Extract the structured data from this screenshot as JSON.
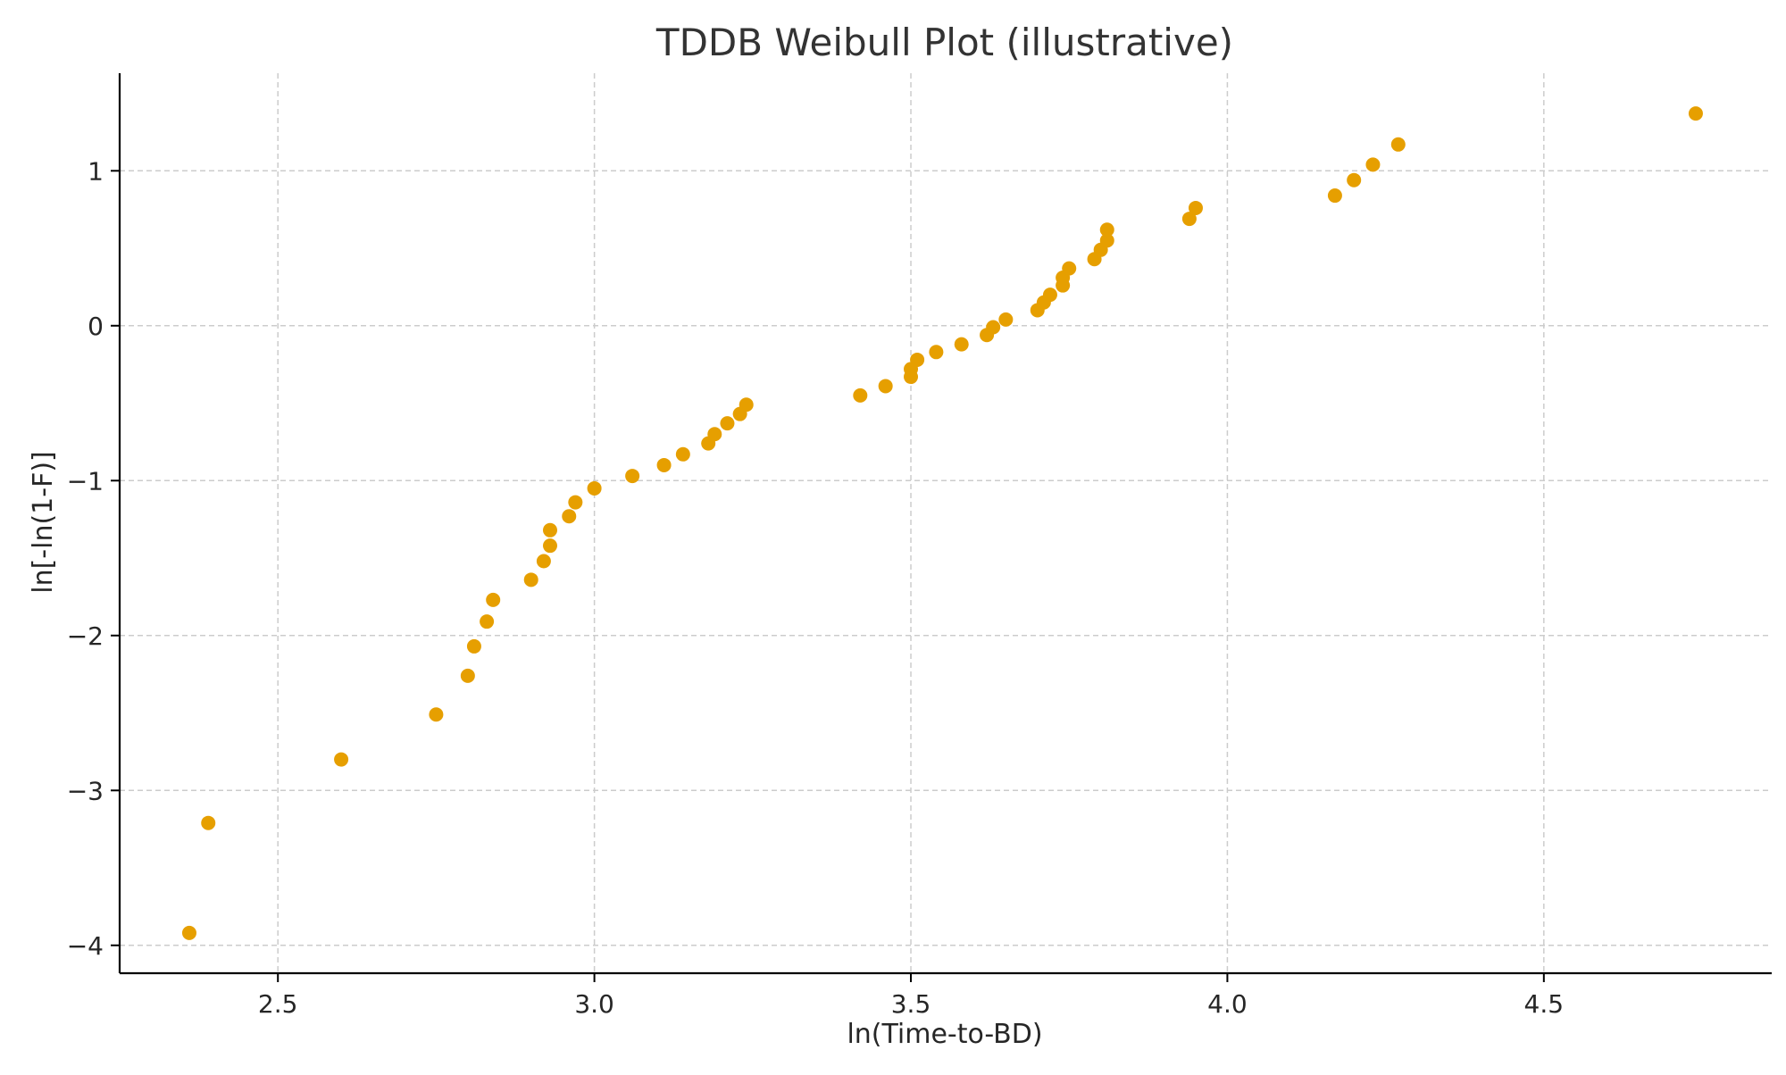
{
  "chart_data": {
    "type": "scatter",
    "title": "TDDB Weibull Plot (illustrative)",
    "xlabel": "ln(Time-to-BD)",
    "ylabel": "ln[-ln(1-F)]",
    "xlim": [
      2.25,
      4.86
    ],
    "ylim": [
      -4.18,
      1.63
    ],
    "xticks": [
      2.5,
      3.0,
      3.5,
      4.0,
      4.5
    ],
    "xtick_labels": [
      "2.5",
      "3.0",
      "3.5",
      "4.0",
      "4.5"
    ],
    "yticks": [
      1,
      0,
      -1,
      -2,
      -3,
      -4
    ],
    "ytick_labels": [
      "1",
      "0",
      "−1",
      "−2",
      "−3",
      "−4"
    ],
    "grid": true,
    "marker_color": "#E69F00",
    "series": [
      {
        "points": [
          {
            "x": 2.36,
            "y": -3.92
          },
          {
            "x": 2.39,
            "y": -3.21
          },
          {
            "x": 2.6,
            "y": -2.8
          },
          {
            "x": 2.75,
            "y": -2.51
          },
          {
            "x": 2.8,
            "y": -2.26
          },
          {
            "x": 2.81,
            "y": -2.07
          },
          {
            "x": 2.83,
            "y": -1.91
          },
          {
            "x": 2.84,
            "y": -1.77
          },
          {
            "x": 2.9,
            "y": -1.64
          },
          {
            "x": 2.92,
            "y": -1.52
          },
          {
            "x": 2.93,
            "y": -1.42
          },
          {
            "x": 2.93,
            "y": -1.32
          },
          {
            "x": 2.96,
            "y": -1.23
          },
          {
            "x": 2.97,
            "y": -1.14
          },
          {
            "x": 3.0,
            "y": -1.05
          },
          {
            "x": 3.06,
            "y": -0.97
          },
          {
            "x": 3.11,
            "y": -0.9
          },
          {
            "x": 3.14,
            "y": -0.83
          },
          {
            "x": 3.18,
            "y": -0.76
          },
          {
            "x": 3.19,
            "y": -0.7
          },
          {
            "x": 3.21,
            "y": -0.63
          },
          {
            "x": 3.23,
            "y": -0.57
          },
          {
            "x": 3.24,
            "y": -0.51
          },
          {
            "x": 3.42,
            "y": -0.45
          },
          {
            "x": 3.46,
            "y": -0.39
          },
          {
            "x": 3.5,
            "y": -0.33
          },
          {
            "x": 3.5,
            "y": -0.28
          },
          {
            "x": 3.51,
            "y": -0.22
          },
          {
            "x": 3.54,
            "y": -0.17
          },
          {
            "x": 3.58,
            "y": -0.12
          },
          {
            "x": 3.62,
            "y": -0.06
          },
          {
            "x": 3.63,
            "y": -0.01
          },
          {
            "x": 3.65,
            "y": 0.04
          },
          {
            "x": 3.7,
            "y": 0.1
          },
          {
            "x": 3.71,
            "y": 0.15
          },
          {
            "x": 3.72,
            "y": 0.2
          },
          {
            "x": 3.74,
            "y": 0.26
          },
          {
            "x": 3.74,
            "y": 0.31
          },
          {
            "x": 3.75,
            "y": 0.37
          },
          {
            "x": 3.79,
            "y": 0.43
          },
          {
            "x": 3.8,
            "y": 0.49
          },
          {
            "x": 3.81,
            "y": 0.55
          },
          {
            "x": 3.81,
            "y": 0.62
          },
          {
            "x": 3.94,
            "y": 0.69
          },
          {
            "x": 3.95,
            "y": 0.76
          },
          {
            "x": 4.17,
            "y": 0.84
          },
          {
            "x": 4.2,
            "y": 0.94
          },
          {
            "x": 4.23,
            "y": 1.04
          },
          {
            "x": 4.27,
            "y": 1.17
          },
          {
            "x": 4.74,
            "y": 1.37
          }
        ]
      }
    ]
  }
}
